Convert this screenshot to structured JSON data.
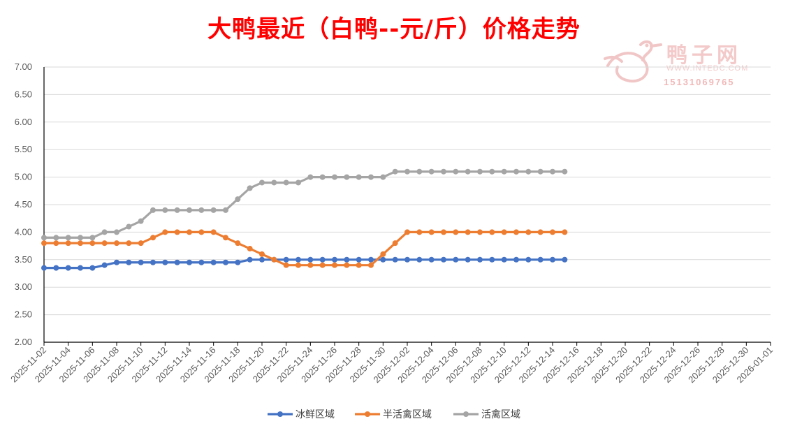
{
  "chart_data": {
    "type": "line",
    "title": "大鸭最近（白鸭--元/斤）价格走势",
    "ylim": [
      2.0,
      7.0
    ],
    "yticks": [
      "2.00",
      "2.50",
      "3.00",
      "3.50",
      "4.00",
      "4.50",
      "5.00",
      "5.50",
      "6.00",
      "6.50",
      "7.00"
    ],
    "grid": true,
    "legend_position": "bottom",
    "xlim": [
      "2025-11-02",
      "2026-01-01"
    ],
    "xticks": [
      "2025-11-02",
      "2025-11-04",
      "2025-11-06",
      "2025-11-08",
      "2025-11-10",
      "2025-11-12",
      "2025-11-14",
      "2025-11-16",
      "2025-11-18",
      "2025-11-20",
      "2025-11-22",
      "2025-11-24",
      "2025-11-26",
      "2025-11-28",
      "2025-11-30",
      "2025-12-02",
      "2025-12-04",
      "2025-12-06",
      "2025-12-08",
      "2025-12-10",
      "2025-12-12",
      "2025-12-14",
      "2025-12-16",
      "2025-12-18",
      "2025-12-20",
      "2025-12-22",
      "2025-12-24",
      "2025-12-26",
      "2025-12-28",
      "2025-12-30",
      "2026-01-01"
    ],
    "x": [
      "2025-11-02",
      "2025-11-03",
      "2025-11-04",
      "2025-11-05",
      "2025-11-06",
      "2025-11-07",
      "2025-11-08",
      "2025-11-09",
      "2025-11-10",
      "2025-11-11",
      "2025-11-12",
      "2025-11-13",
      "2025-11-14",
      "2025-11-15",
      "2025-11-16",
      "2025-11-17",
      "2025-11-18",
      "2025-11-19",
      "2025-11-20",
      "2025-11-21",
      "2025-11-22",
      "2025-11-23",
      "2025-11-24",
      "2025-11-25",
      "2025-11-26",
      "2025-11-27",
      "2025-11-28",
      "2025-11-29",
      "2025-11-30",
      "2025-12-01",
      "2025-12-02",
      "2025-12-03",
      "2025-12-04",
      "2025-12-05",
      "2025-12-06",
      "2025-12-07",
      "2025-12-08",
      "2025-12-09",
      "2025-12-10",
      "2025-12-11",
      "2025-12-12",
      "2025-12-13",
      "2025-12-14",
      "2025-12-15"
    ],
    "series": [
      {
        "name": "冰鲜区域",
        "color": "#4472c4",
        "values": [
          3.35,
          3.35,
          3.35,
          3.35,
          3.35,
          3.4,
          3.45,
          3.45,
          3.45,
          3.45,
          3.45,
          3.45,
          3.45,
          3.45,
          3.45,
          3.45,
          3.45,
          3.5,
          3.5,
          3.5,
          3.5,
          3.5,
          3.5,
          3.5,
          3.5,
          3.5,
          3.5,
          3.5,
          3.5,
          3.5,
          3.5,
          3.5,
          3.5,
          3.5,
          3.5,
          3.5,
          3.5,
          3.5,
          3.5,
          3.5,
          3.5,
          3.5,
          3.5,
          3.5
        ]
      },
      {
        "name": "半活禽区域",
        "color": "#ed7d31",
        "values": [
          3.8,
          3.8,
          3.8,
          3.8,
          3.8,
          3.8,
          3.8,
          3.8,
          3.8,
          3.9,
          4.0,
          4.0,
          4.0,
          4.0,
          4.0,
          3.9,
          3.8,
          3.7,
          3.6,
          3.5,
          3.4,
          3.4,
          3.4,
          3.4,
          3.4,
          3.4,
          3.4,
          3.4,
          3.6,
          3.8,
          4.0,
          4.0,
          4.0,
          4.0,
          4.0,
          4.0,
          4.0,
          4.0,
          4.0,
          4.0,
          4.0,
          4.0,
          4.0,
          4.0
        ]
      },
      {
        "name": "活禽区域",
        "color": "#a5a5a5",
        "values": [
          3.9,
          3.9,
          3.9,
          3.9,
          3.9,
          4.0,
          4.0,
          4.1,
          4.2,
          4.4,
          4.4,
          4.4,
          4.4,
          4.4,
          4.4,
          4.4,
          4.6,
          4.8,
          4.9,
          4.9,
          4.9,
          4.9,
          5.0,
          5.0,
          5.0,
          5.0,
          5.0,
          5.0,
          5.0,
          5.1,
          5.1,
          5.1,
          5.1,
          5.1,
          5.1,
          5.1,
          5.1,
          5.1,
          5.1,
          5.1,
          5.1,
          5.1,
          5.1,
          5.1
        ]
      }
    ]
  },
  "watermark": {
    "name": "鸭子网",
    "url": "WWW.INTEDC.COM",
    "phone": "15131069765",
    "color": "#f3c9c9"
  }
}
